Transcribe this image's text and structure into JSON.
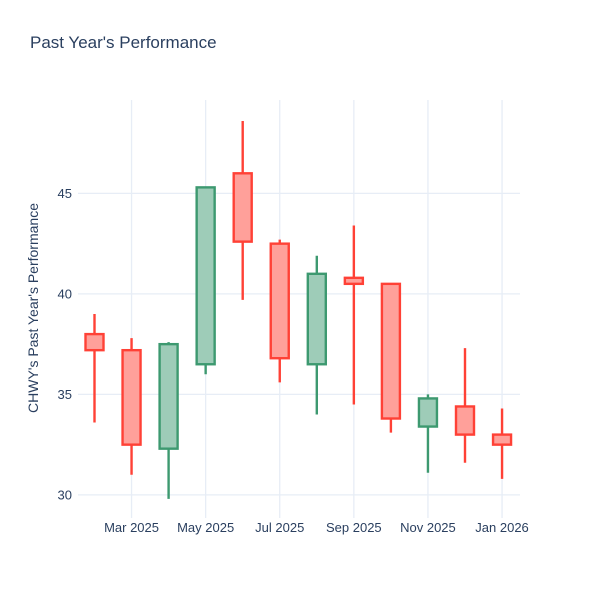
{
  "header": {
    "title": "Past Year's Performance"
  },
  "chart_data": {
    "type": "candlestick",
    "title": "Past Year's Performance",
    "xlabel": "",
    "ylabel": "CHWY's Past Year's Performance",
    "x_tick_labels": [
      "Mar 2025",
      "May 2025",
      "Jul 2025",
      "Sep 2025",
      "Nov 2025",
      "Jan 2026"
    ],
    "x_tick_candle_indices": [
      1,
      3,
      5,
      7,
      9,
      11
    ],
    "y_ticks": [
      30,
      35,
      40,
      45
    ],
    "ylim": [
      28.9,
      49.6
    ],
    "grid": true,
    "legend": "none",
    "colors": {
      "increasing_line": "#3D9970",
      "increasing_fill": "#9ECCB8",
      "decreasing_line": "#FF4136",
      "decreasing_fill": "#FFA09A",
      "gridline": "#e7edf6",
      "text": "#2a3f5f",
      "background": "#ffffff"
    },
    "series": [
      {
        "name": "CHWY",
        "points": [
          {
            "month": "Feb 2025",
            "open": 38.0,
            "high": 39.0,
            "low": 33.6,
            "close": 37.2
          },
          {
            "month": "Mar 2025",
            "open": 37.2,
            "high": 37.8,
            "low": 31.0,
            "close": 32.5
          },
          {
            "month": "Apr 2025",
            "open": 32.3,
            "high": 37.6,
            "low": 29.8,
            "close": 37.5
          },
          {
            "month": "May 2025",
            "open": 36.5,
            "high": 45.3,
            "low": 36.0,
            "close": 45.3
          },
          {
            "month": "Jun 2025",
            "open": 46.0,
            "high": 48.6,
            "low": 39.7,
            "close": 42.6
          },
          {
            "month": "Jul 2025",
            "open": 42.5,
            "high": 42.7,
            "low": 35.6,
            "close": 36.8
          },
          {
            "month": "Aug 2025",
            "open": 36.5,
            "high": 41.9,
            "low": 34.0,
            "close": 41.0
          },
          {
            "month": "Sep 2025",
            "open": 40.8,
            "high": 43.4,
            "low": 34.5,
            "close": 40.5
          },
          {
            "month": "Oct 2025",
            "open": 40.5,
            "high": 40.5,
            "low": 33.1,
            "close": 33.8
          },
          {
            "month": "Nov 2025",
            "open": 33.4,
            "high": 35.0,
            "low": 31.1,
            "close": 34.8
          },
          {
            "month": "Dec 2025",
            "open": 34.4,
            "high": 37.3,
            "low": 31.6,
            "close": 33.0
          },
          {
            "month": "Jan 2026",
            "open": 33.0,
            "high": 34.3,
            "low": 30.8,
            "close": 32.5
          }
        ]
      }
    ]
  }
}
